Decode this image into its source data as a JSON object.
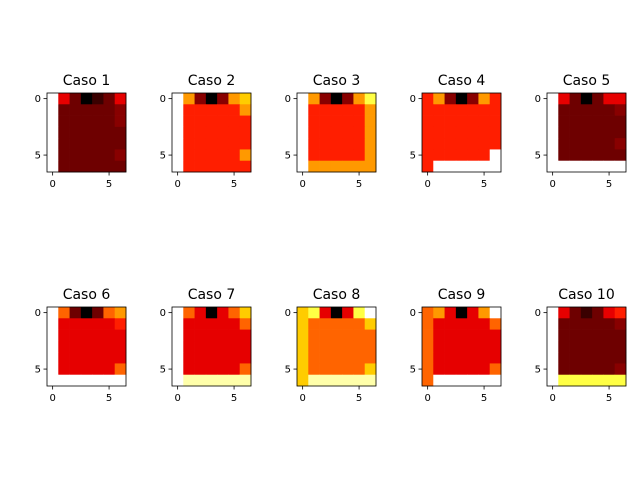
{
  "palette": {
    "0": "#000000",
    "1": "#3a0000",
    "2": "#6e0000",
    "3": "#880000",
    "4": "#e60000",
    "5": "#ff1e00",
    "6": "#ff6400",
    "7": "#ff9900",
    "8": "#ffcc00",
    "9": "#ffff44",
    "10": "#ffffaa",
    "11": "#ffffff"
  },
  "chart_data": [
    {
      "type": "heatmap",
      "title": "Caso 1",
      "xticks": [
        0,
        5
      ],
      "yticks": [
        0,
        5
      ],
      "xlim": [
        -0.5,
        6.5
      ],
      "ylim": [
        6.5,
        -0.5
      ],
      "grid": [
        [
          11,
          4,
          2,
          0,
          1,
          2,
          4
        ],
        [
          11,
          2,
          2,
          2,
          2,
          2,
          3
        ],
        [
          11,
          2,
          2,
          2,
          2,
          2,
          3
        ],
        [
          11,
          2,
          2,
          2,
          2,
          2,
          2
        ],
        [
          11,
          2,
          2,
          2,
          2,
          2,
          2
        ],
        [
          11,
          2,
          2,
          2,
          2,
          2,
          3
        ],
        [
          11,
          2,
          2,
          2,
          2,
          2,
          2
        ]
      ]
    },
    {
      "type": "heatmap",
      "title": "Caso 2",
      "xticks": [
        0,
        5
      ],
      "yticks": [
        0,
        5
      ],
      "xlim": [
        -0.5,
        6.5
      ],
      "ylim": [
        6.5,
        -0.5
      ],
      "grid": [
        [
          11,
          7,
          3,
          0,
          3,
          7,
          8
        ],
        [
          11,
          5,
          5,
          5,
          5,
          5,
          7
        ],
        [
          11,
          5,
          5,
          5,
          5,
          5,
          5
        ],
        [
          11,
          5,
          5,
          5,
          5,
          5,
          5
        ],
        [
          11,
          5,
          5,
          5,
          5,
          5,
          5
        ],
        [
          11,
          5,
          5,
          5,
          5,
          5,
          7
        ],
        [
          11,
          5,
          5,
          5,
          5,
          5,
          5
        ]
      ]
    },
    {
      "type": "heatmap",
      "title": "Caso 3",
      "xticks": [
        0,
        5
      ],
      "yticks": [
        0,
        5
      ],
      "xlim": [
        -0.5,
        6.5
      ],
      "ylim": [
        6.5,
        -0.5
      ],
      "grid": [
        [
          11,
          7,
          3,
          0,
          3,
          7,
          9
        ],
        [
          11,
          5,
          5,
          5,
          5,
          5,
          7
        ],
        [
          11,
          5,
          5,
          5,
          5,
          5,
          7
        ],
        [
          11,
          5,
          5,
          5,
          5,
          5,
          7
        ],
        [
          11,
          5,
          5,
          5,
          5,
          5,
          7
        ],
        [
          11,
          5,
          5,
          5,
          5,
          5,
          7
        ],
        [
          11,
          7,
          7,
          7,
          7,
          7,
          7
        ]
      ]
    },
    {
      "type": "heatmap",
      "title": "Caso 4",
      "xticks": [
        0,
        5
      ],
      "yticks": [
        0,
        5
      ],
      "xlim": [
        -0.5,
        6.5
      ],
      "ylim": [
        6.5,
        -0.5
      ],
      "grid": [
        [
          5,
          7,
          3,
          0,
          3,
          7,
          5
        ],
        [
          5,
          5,
          5,
          5,
          5,
          5,
          5
        ],
        [
          5,
          5,
          5,
          5,
          5,
          5,
          5
        ],
        [
          5,
          5,
          5,
          5,
          5,
          5,
          5
        ],
        [
          5,
          5,
          5,
          5,
          5,
          5,
          5
        ],
        [
          5,
          5,
          5,
          5,
          5,
          5,
          11
        ],
        [
          5,
          11,
          11,
          11,
          11,
          11,
          11
        ]
      ]
    },
    {
      "type": "heatmap",
      "title": "Caso 5",
      "xticks": [
        0,
        5
      ],
      "yticks": [
        0,
        5
      ],
      "xlim": [
        -0.5,
        6.5
      ],
      "ylim": [
        6.5,
        -0.5
      ],
      "grid": [
        [
          11,
          4,
          2,
          0,
          2,
          4,
          4
        ],
        [
          11,
          2,
          2,
          2,
          2,
          2,
          3
        ],
        [
          11,
          2,
          2,
          2,
          2,
          2,
          2
        ],
        [
          11,
          2,
          2,
          2,
          2,
          2,
          2
        ],
        [
          11,
          2,
          2,
          2,
          2,
          2,
          3
        ],
        [
          11,
          2,
          2,
          2,
          2,
          2,
          2
        ],
        [
          11,
          11,
          11,
          11,
          11,
          11,
          11
        ]
      ]
    },
    {
      "type": "heatmap",
      "title": "Caso 6",
      "xticks": [
        0,
        5
      ],
      "yticks": [
        0,
        5
      ],
      "xlim": [
        -0.5,
        6.5
      ],
      "ylim": [
        6.5,
        -0.5
      ],
      "grid": [
        [
          11,
          6,
          2,
          0,
          2,
          6,
          7
        ],
        [
          11,
          4,
          4,
          4,
          4,
          4,
          5
        ],
        [
          11,
          4,
          4,
          4,
          4,
          4,
          4
        ],
        [
          11,
          4,
          4,
          4,
          4,
          4,
          4
        ],
        [
          11,
          4,
          4,
          4,
          4,
          4,
          4
        ],
        [
          11,
          4,
          4,
          4,
          4,
          4,
          6
        ],
        [
          11,
          11,
          11,
          11,
          11,
          11,
          11
        ]
      ]
    },
    {
      "type": "heatmap",
      "title": "Caso 7",
      "xticks": [
        0,
        5
      ],
      "yticks": [
        0,
        5
      ],
      "xlim": [
        -0.5,
        6.5
      ],
      "ylim": [
        6.5,
        -0.5
      ],
      "grid": [
        [
          11,
          6,
          4,
          0,
          4,
          6,
          8
        ],
        [
          11,
          4,
          4,
          4,
          4,
          4,
          6
        ],
        [
          11,
          4,
          4,
          4,
          4,
          4,
          4
        ],
        [
          11,
          4,
          4,
          4,
          4,
          4,
          4
        ],
        [
          11,
          4,
          4,
          4,
          4,
          4,
          4
        ],
        [
          11,
          4,
          4,
          4,
          4,
          4,
          6
        ],
        [
          11,
          10,
          10,
          10,
          10,
          10,
          10
        ]
      ]
    },
    {
      "type": "heatmap",
      "title": "Caso 8",
      "xticks": [
        0,
        5
      ],
      "yticks": [
        0,
        5
      ],
      "xlim": [
        -0.5,
        6.5
      ],
      "ylim": [
        6.5,
        -0.5
      ],
      "grid": [
        [
          8,
          9,
          4,
          0,
          4,
          9,
          11
        ],
        [
          8,
          6,
          6,
          6,
          6,
          6,
          8
        ],
        [
          8,
          6,
          6,
          6,
          6,
          6,
          6
        ],
        [
          8,
          6,
          6,
          6,
          6,
          6,
          6
        ],
        [
          8,
          6,
          6,
          6,
          6,
          6,
          6
        ],
        [
          8,
          6,
          6,
          6,
          6,
          6,
          8
        ],
        [
          8,
          10,
          10,
          10,
          10,
          10,
          10
        ]
      ]
    },
    {
      "type": "heatmap",
      "title": "Caso 9",
      "xticks": [
        0,
        5
      ],
      "yticks": [
        0,
        5
      ],
      "xlim": [
        -0.5,
        6.5
      ],
      "ylim": [
        6.5,
        -0.5
      ],
      "grid": [
        [
          6,
          7,
          4,
          0,
          4,
          7,
          11
        ],
        [
          6,
          4,
          4,
          4,
          4,
          4,
          6
        ],
        [
          6,
          4,
          4,
          4,
          4,
          4,
          4
        ],
        [
          6,
          4,
          4,
          4,
          4,
          4,
          4
        ],
        [
          6,
          4,
          4,
          4,
          4,
          4,
          4
        ],
        [
          6,
          4,
          4,
          4,
          4,
          4,
          6
        ],
        [
          6,
          11,
          11,
          11,
          11,
          11,
          11
        ]
      ]
    },
    {
      "type": "heatmap",
      "title": "Caso 10",
      "xticks": [
        0,
        5
      ],
      "yticks": [
        0,
        5
      ],
      "xlim": [
        -0.5,
        6.5
      ],
      "ylim": [
        6.5,
        -0.5
      ],
      "grid": [
        [
          11,
          4,
          2,
          1,
          2,
          4,
          5
        ],
        [
          11,
          2,
          2,
          2,
          2,
          2,
          3
        ],
        [
          11,
          2,
          2,
          2,
          2,
          2,
          2
        ],
        [
          11,
          2,
          2,
          2,
          2,
          2,
          2
        ],
        [
          11,
          2,
          2,
          2,
          2,
          2,
          2
        ],
        [
          11,
          2,
          2,
          2,
          2,
          2,
          3
        ],
        [
          11,
          9,
          9,
          9,
          9,
          9,
          9
        ]
      ]
    }
  ]
}
